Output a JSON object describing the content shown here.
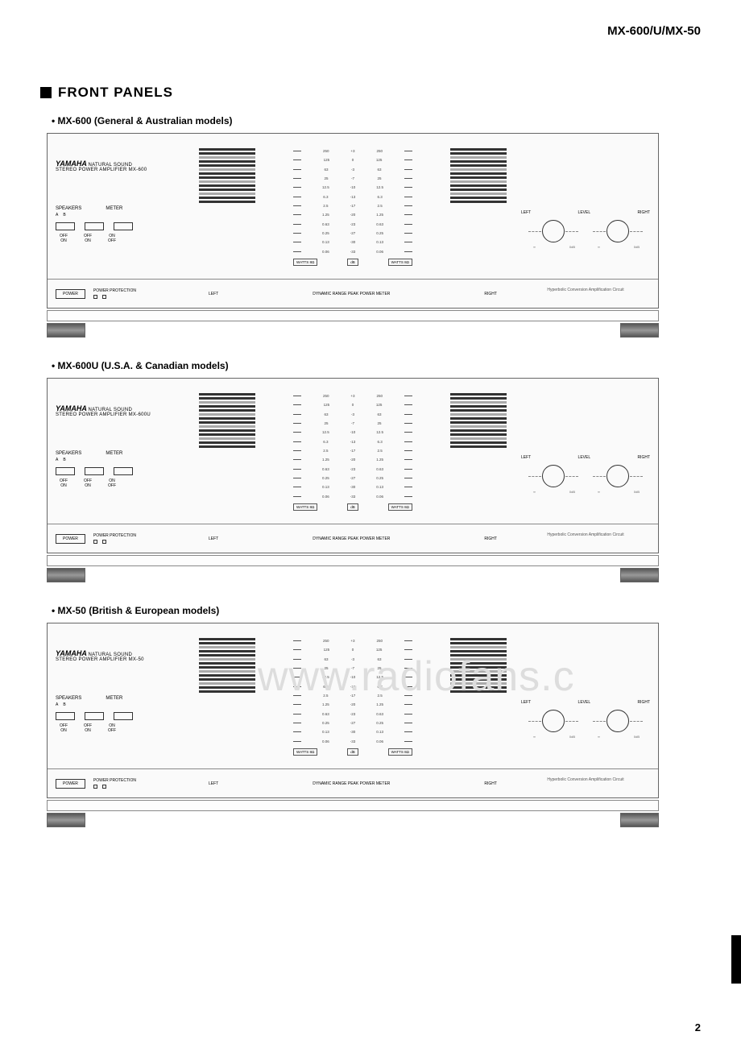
{
  "header": {
    "model_codes": "MX-600/U/MX-50"
  },
  "section_title": "FRONT PANELS",
  "page_number": "2",
  "watermark": "www.radiofans.c",
  "models": [
    {
      "label": "MX-600 (General & Australian models)",
      "product_line2": "STEREO POWER AMPLIFIER   MX-600"
    },
    {
      "label": "MX-600U (U.S.A. & Canadian models)",
      "product_line2": "STEREO POWER AMPLIFIER   MX-600U"
    },
    {
      "label": "MX-50 (British & European models)",
      "product_line2": "STEREO POWER AMPLIFIER   MX-50"
    }
  ],
  "brand": {
    "name": "YAMAHA",
    "subtitle": "NATURAL SOUND"
  },
  "panel_labels": {
    "speakers": "SPEAKERS",
    "meter": "METER",
    "a": "A",
    "b": "B",
    "off": "OFF",
    "on": "ON",
    "left": "LEFT",
    "right": "RIGHT",
    "level": "LEVEL",
    "power": "POWER",
    "power_protection": "POWER PROTECTION",
    "meter_title": "DYNAMIC RANGE PEAK POWER METER",
    "hyperbolic": "Hyperbolic Conversion Amplification Circuit",
    "watts8_l": "WATTS 8Ω",
    "watts8_r": "WATTS 8Ω",
    "db": "dB"
  },
  "scale": [
    {
      "w": "250",
      "db": "+3",
      "w2": "250"
    },
    {
      "w": "125",
      "db": "0",
      "w2": "125"
    },
    {
      "w": "63",
      "db": "-3",
      "w2": "63"
    },
    {
      "w": "25",
      "db": "-7",
      "w2": "25"
    },
    {
      "w": "12.5",
      "db": "-10",
      "w2": "12.5"
    },
    {
      "w": "6.3",
      "db": "-13",
      "w2": "6.3"
    },
    {
      "w": "2.5",
      "db": "-17",
      "w2": "2.5"
    },
    {
      "w": "1.25",
      "db": "-20",
      "w2": "1.25"
    },
    {
      "w": "0.63",
      "db": "-23",
      "w2": "0.63"
    },
    {
      "w": "0.25",
      "db": "-27",
      "w2": "0.25"
    },
    {
      "w": "0.13",
      "db": "-30",
      "w2": "0.13"
    },
    {
      "w": "0.06",
      "db": "-33",
      "w2": "0.06"
    }
  ],
  "colors": {
    "text": "#000000",
    "frame": "#666666",
    "bg": "#ffffff"
  }
}
